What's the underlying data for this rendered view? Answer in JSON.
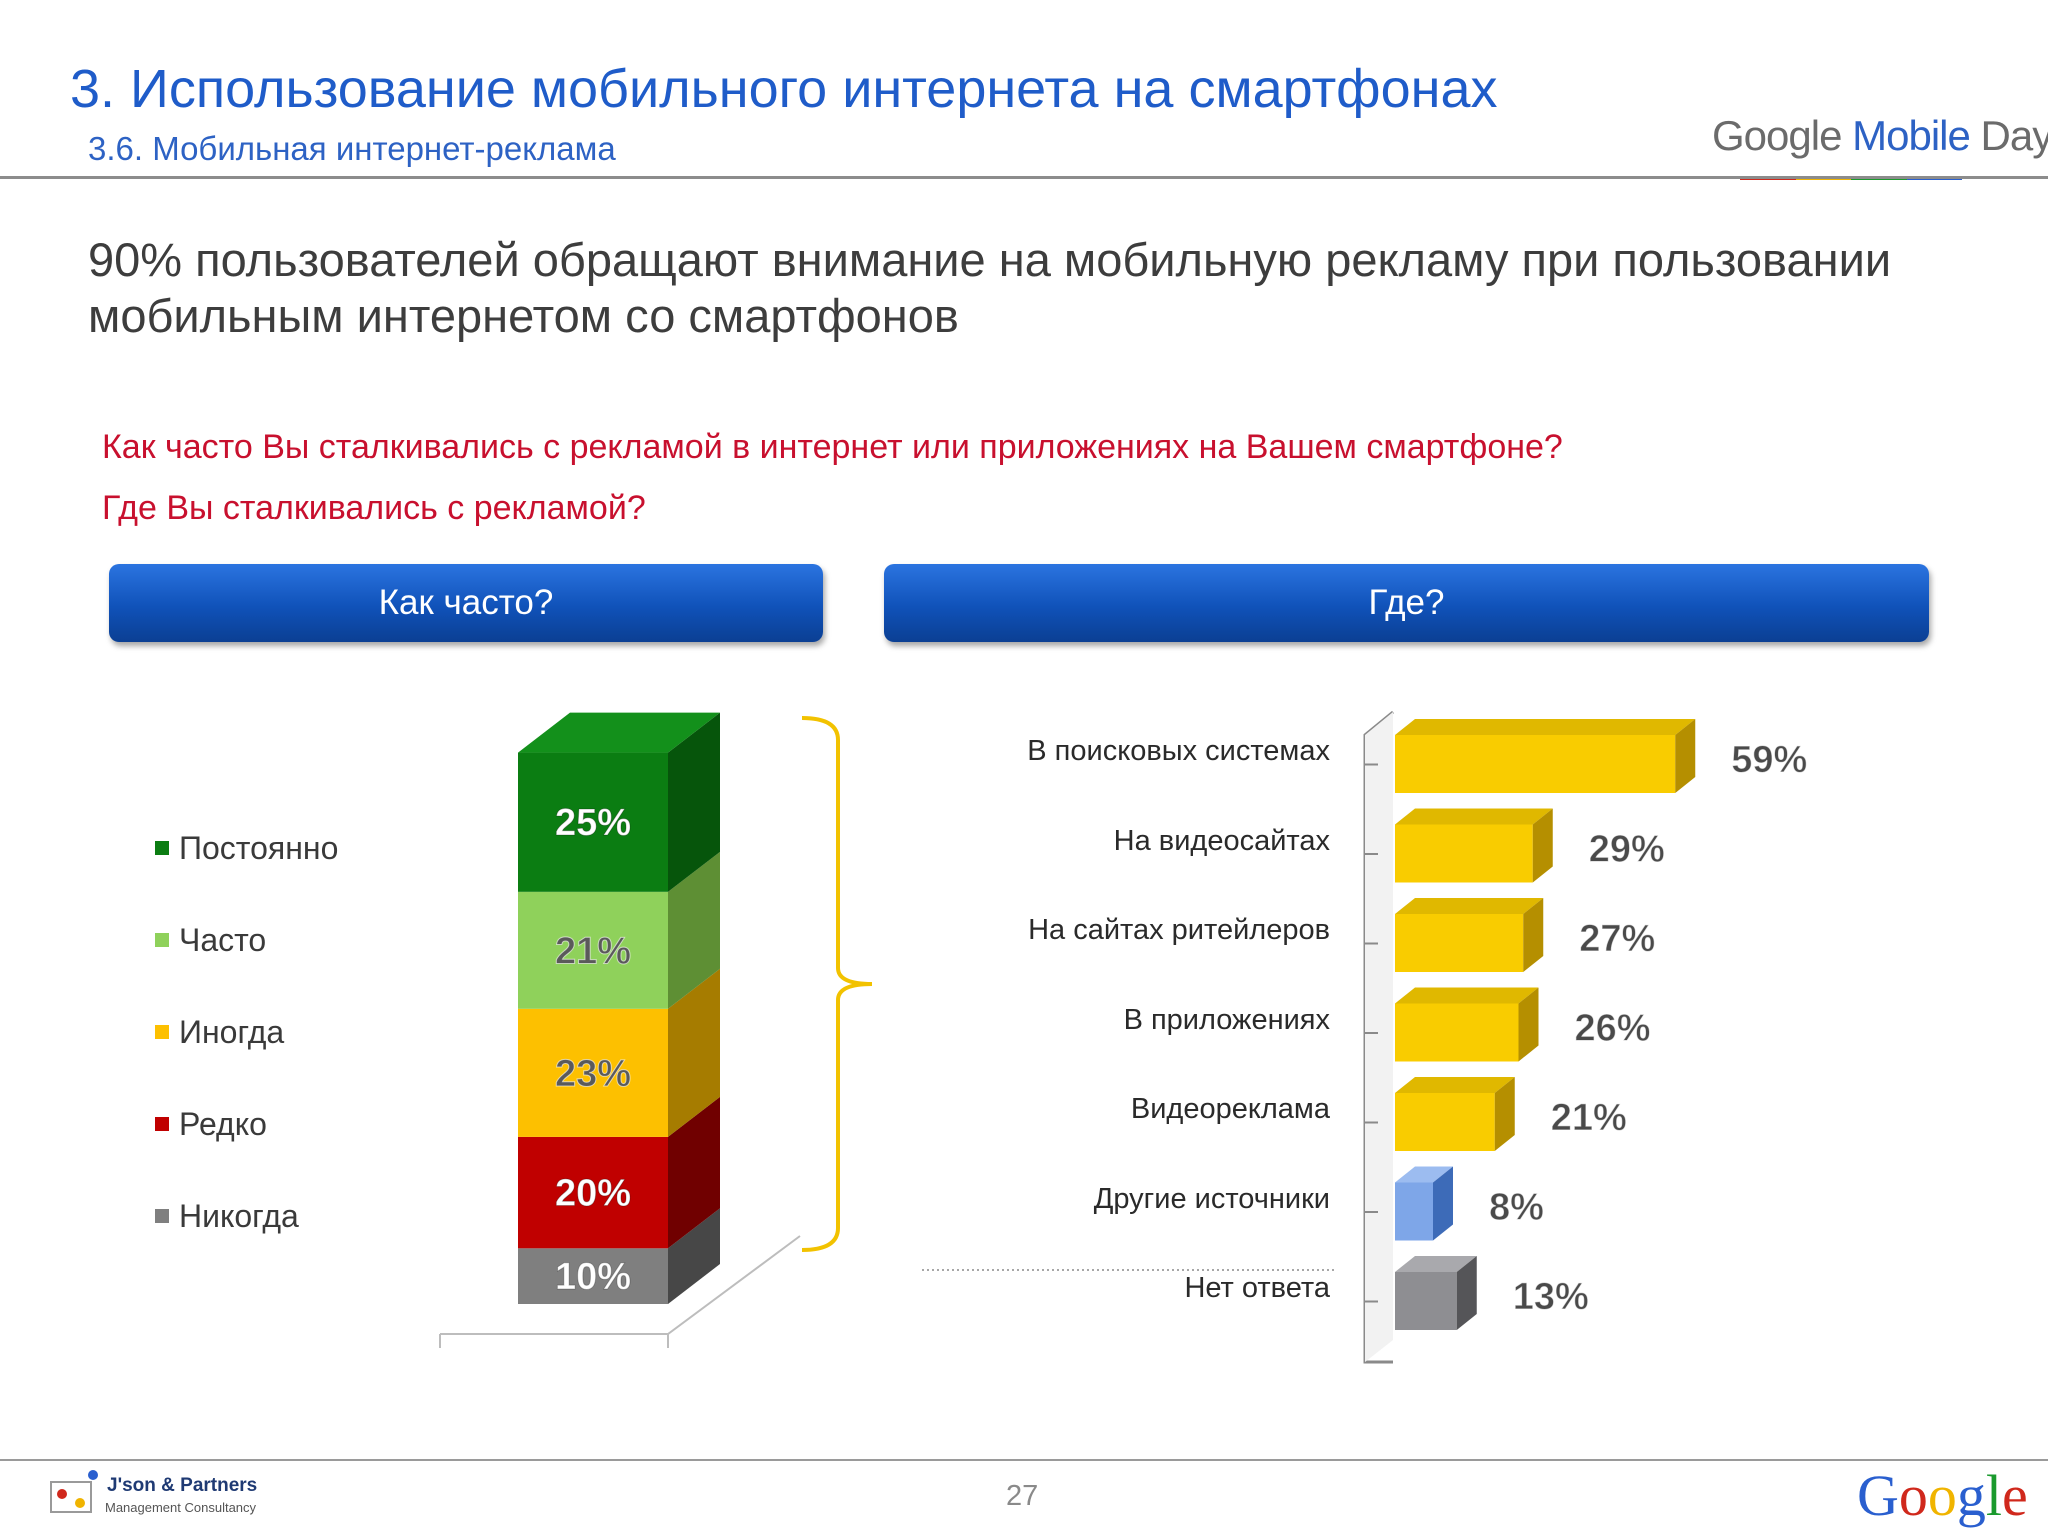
{
  "header": {
    "title": "3. Использование мобильного интернета на смартфонах",
    "subtitle": "3.6. Мобильная интернет-реклама",
    "brand": {
      "google": "Google",
      "mobile": "Mobile",
      "day": "Day"
    }
  },
  "headline": "90% пользователей обращают внимание на мобильную рекламу при пользовании мобильным интернетом со смартфонов",
  "questions": [
    "Как часто Вы сталкивались с рекламой  в интернет или приложениях на Вашем смартфоне?",
    "Где Вы сталкивались с рекламой?"
  ],
  "sections": {
    "left": "Как часто?",
    "right": "Где?"
  },
  "colors": {
    "blue_title": "#1f5cc9",
    "question_red": "#c8102e",
    "bar_yellow": "#f9cc00",
    "bar_blue": "#7ea6e8",
    "bar_gray": "#8e8e92",
    "bracket": "#f2c200"
  },
  "chart_data": [
    {
      "type": "bar",
      "stacked": true,
      "orientation": "vertical",
      "title": "Как часто?",
      "series": [
        {
          "name": "Постоянно",
          "value": 25,
          "label": "25%",
          "color": "#0b7d12",
          "side": "#06550b",
          "top": "#13901b",
          "text": "#ffffff"
        },
        {
          "name": "Часто",
          "value": 21,
          "label": "21%",
          "color": "#8fd15b",
          "side": "#5e8f34",
          "text": "#5a5a5a"
        },
        {
          "name": "Иногда",
          "value": 23,
          "label": "23%",
          "color": "#fdc000",
          "side": "#a67c00",
          "text": "#5a5a5a"
        },
        {
          "name": "Редко",
          "value": 20,
          "label": "20%",
          "color": "#c00000",
          "side": "#700000",
          "text": "#ffffff"
        },
        {
          "name": "Никогда",
          "value": 10,
          "label": "10%",
          "color": "#7f7f7f",
          "side": "#474747",
          "text": "#ffffff"
        }
      ],
      "legend_position": "left",
      "grid": false
    },
    {
      "type": "bar",
      "orientation": "horizontal",
      "title": "Где?",
      "categories": [
        "В поисковых системах",
        "На видеосайтах",
        "На сайтах ритейлеров",
        "В приложениях",
        "Видеореклама",
        "Другие источники",
        "Нет ответа"
      ],
      "values": [
        59,
        29,
        27,
        26,
        21,
        8,
        13
      ],
      "labels": [
        "59%",
        "29%",
        "27%",
        "26%",
        "21%",
        "8%",
        "13%"
      ],
      "bar_colors": [
        "#f9cc00",
        "#f9cc00",
        "#f9cc00",
        "#f9cc00",
        "#f9cc00",
        "#7ea6e8",
        "#8e8e92"
      ],
      "grid": false
    }
  ],
  "footer": {
    "page_number": "27",
    "partner_name": "J'son & Partners",
    "partner_sub": "Management Consultancy",
    "google_letters": [
      "G",
      "o",
      "o",
      "g",
      "l",
      "e"
    ],
    "google_colors": [
      "#2a5fcf",
      "#d0281c",
      "#f0b400",
      "#2a5fcf",
      "#1a9a2d",
      "#d0281c"
    ]
  }
}
